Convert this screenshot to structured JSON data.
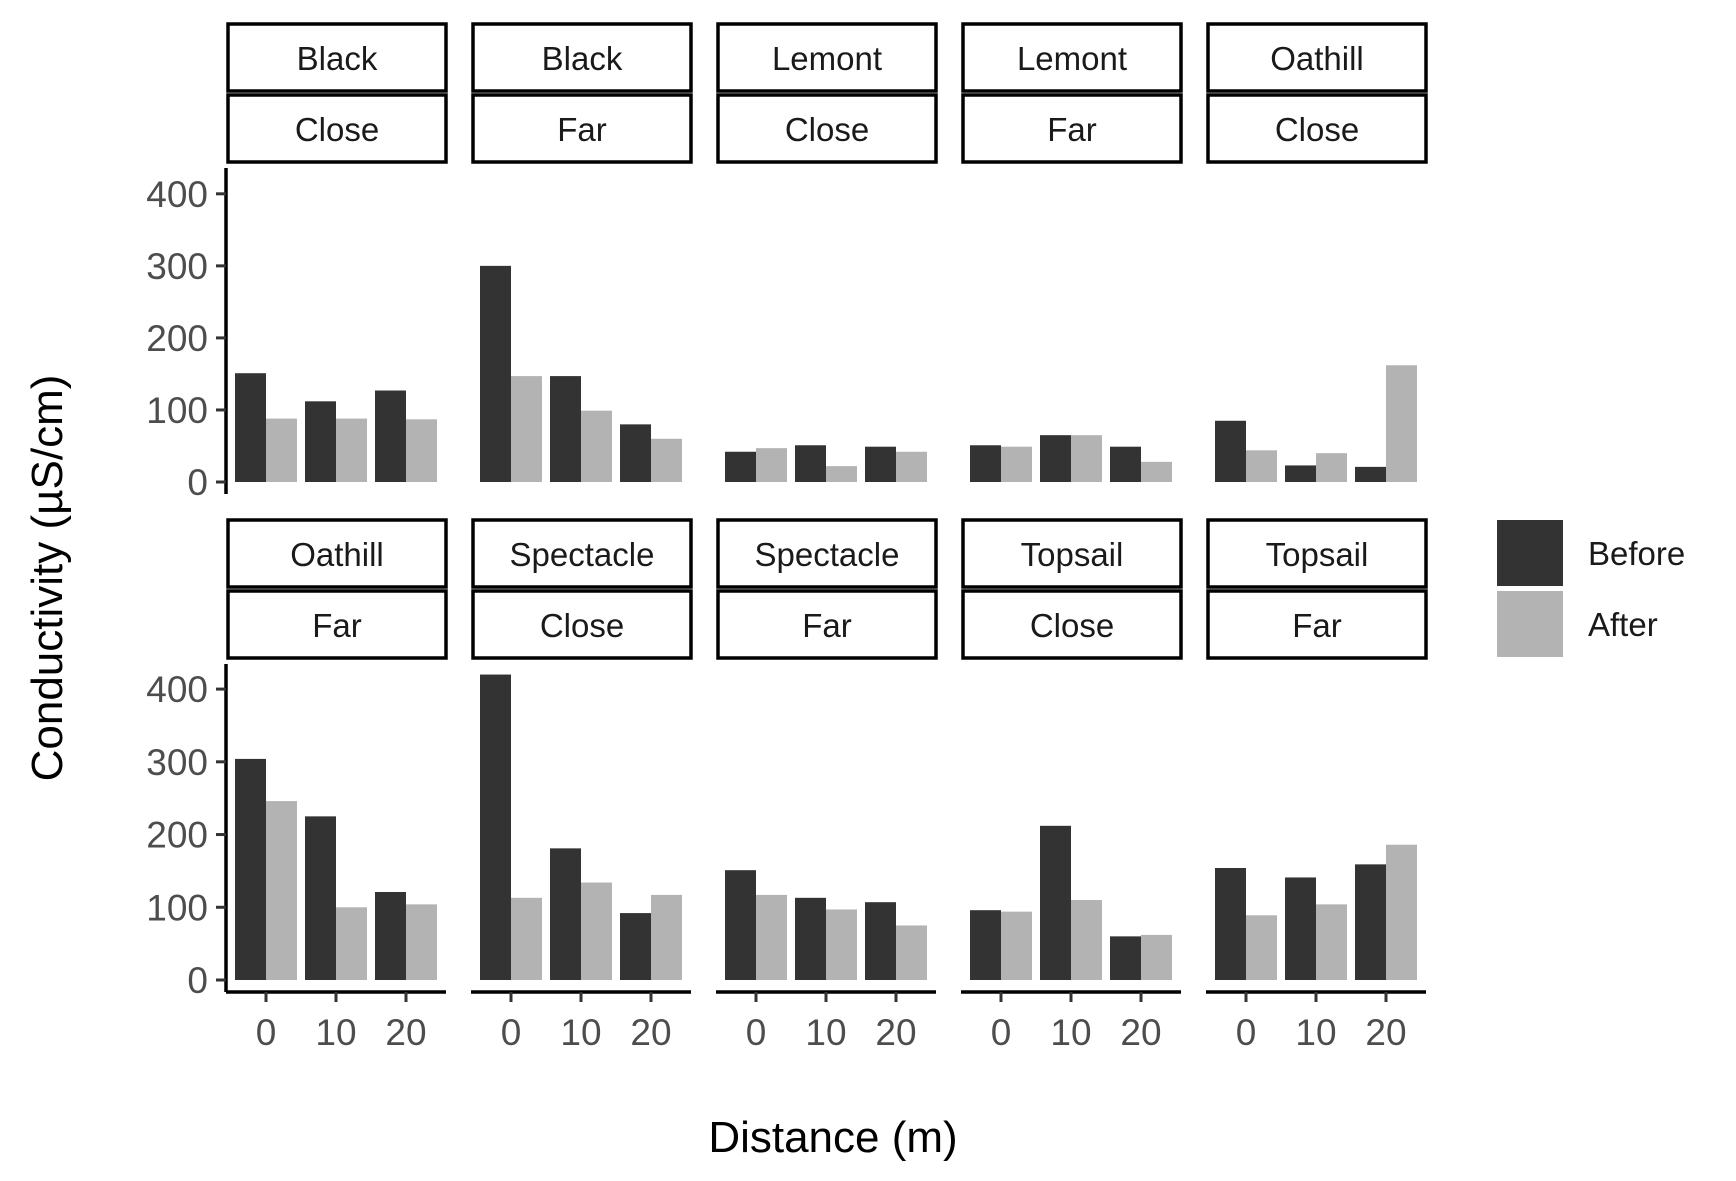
{
  "chart_data": {
    "type": "bar",
    "xlabel": "Distance (m)",
    "ylabel": "Conductivity (µS/cm)",
    "ylim": [
      0,
      440
    ],
    "yticks": [
      0,
      100,
      200,
      300,
      400
    ],
    "categories": [
      "0",
      "10",
      "20"
    ],
    "legend": {
      "position": "right",
      "entries": [
        {
          "name": "Before",
          "color": "#333333"
        },
        {
          "name": "After",
          "color": "#b3b3b3"
        }
      ]
    },
    "colors": {
      "Before": "#333333",
      "After": "#b3b3b3"
    },
    "facets": [
      {
        "site": "Black",
        "proximity": "Close",
        "before": [
          151,
          112,
          127
        ],
        "after": [
          88,
          88,
          87
        ]
      },
      {
        "site": "Black",
        "proximity": "Far",
        "before": [
          300,
          147,
          80
        ],
        "after": [
          147,
          99,
          60
        ]
      },
      {
        "site": "Lemont",
        "proximity": "Close",
        "before": [
          42,
          51,
          49
        ],
        "after": [
          47,
          22,
          42
        ]
      },
      {
        "site": "Lemont",
        "proximity": "Far",
        "before": [
          51,
          65,
          49
        ],
        "after": [
          49,
          65,
          28
        ]
      },
      {
        "site": "Oathill",
        "proximity": "Close",
        "before": [
          85,
          23,
          21
        ],
        "after": [
          44,
          40,
          162
        ]
      },
      {
        "site": "Oathill",
        "proximity": "Far",
        "before": [
          304,
          225,
          121
        ],
        "after": [
          246,
          100,
          104
        ]
      },
      {
        "site": "Spectacle",
        "proximity": "Close",
        "before": [
          420,
          181,
          92
        ],
        "after": [
          113,
          134,
          117
        ]
      },
      {
        "site": "Spectacle",
        "proximity": "Far",
        "before": [
          151,
          113,
          107
        ],
        "after": [
          117,
          97,
          75
        ]
      },
      {
        "site": "Topsail",
        "proximity": "Close",
        "before": [
          96,
          212,
          60
        ],
        "after": [
          94,
          110,
          62
        ]
      },
      {
        "site": "Topsail",
        "proximity": "Far",
        "before": [
          154,
          141,
          159
        ],
        "after": [
          89,
          104,
          186
        ]
      }
    ]
  }
}
